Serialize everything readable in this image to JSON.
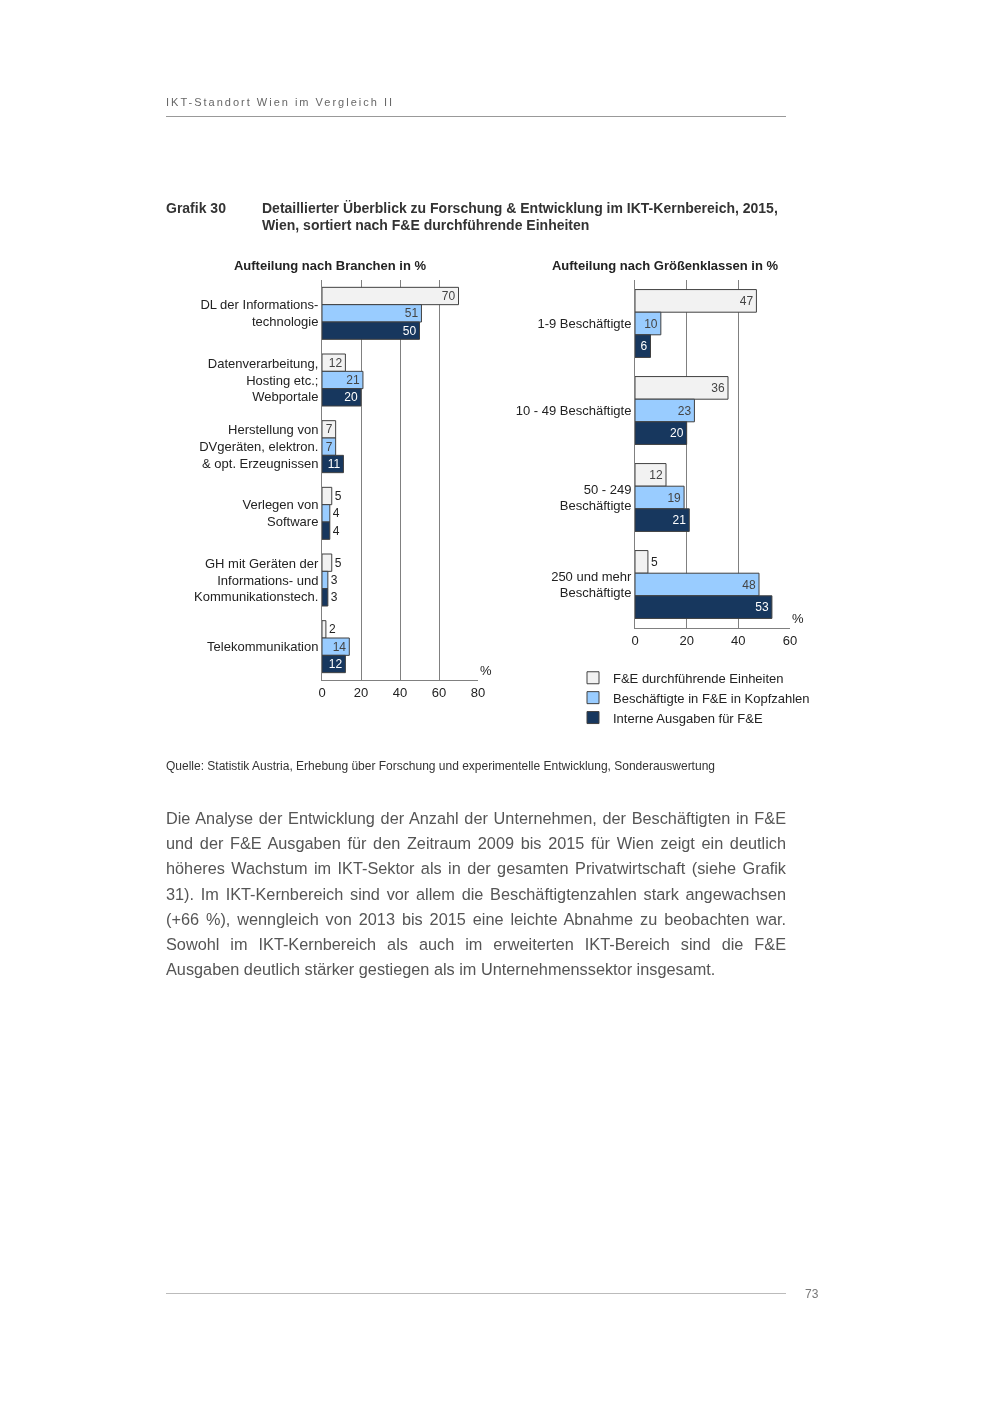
{
  "chart_data": [
    {
      "type": "other",
      "title": "Detaillierter Überblick zu Forschung & Entwicklung im IKT-Kernbereich, 2015, Wien, sortiert nach F&E durchführende Einheiten",
      "annotations": [
        "IKT-Standort Wien im Vergleich II",
        "Grafik 30",
        "Quelle: Statistik Austria, Erhebung über Forschung und experimentelle Entwicklung, Sonderauswertung",
        "Die Analyse der Entwicklung der Anzahl der Unternehmen, der Beschäftigten in F&E und der F&E Ausgaben für den Zeitraum 2009 bis 2015 für Wien zeigt ein deutlich höheres Wachstum im IKT-Sektor als in der gesamten Privatwirtschaft (siehe Grafik 31). Im IKT-Kernbereich sind vor allem die Beschäftigtenzahlen stark angewachsen (+66 %), wenngleich von 2013 bis 2015 eine leichte Abnahme zu beobachten war. Sowohl im IKT-Kernbereich als auch im erweiterten IKT-Bereich sind die F&E Ausgaben deutlich stärker gestiegen als im Unternehmenssektor insgesamt.",
        "73"
      ]
    },
    {
      "type": "bar",
      "orientation": "horizontal",
      "title": "Aufteilung nach Branchen in %",
      "xlabel": "%",
      "categories": [
        "DL der Informations-technologie",
        "Datenverarbeitung, Hosting etc.; Webportale",
        "Herstellung von DVgeräten, elektron. & opt. Erzeugnissen",
        "Verlegen von Software",
        "GH mit Geräten der Informations- und Kommunikationstech.",
        "Telekommunikation"
      ],
      "series": [
        {
          "color": "#f2f2f2",
          "values": [
            70,
            12,
            7,
            5,
            5,
            2
          ]
        },
        {
          "color": "#99ccff",
          "values": [
            51,
            21,
            7,
            4,
            3,
            14
          ]
        },
        {
          "color": "#17375e",
          "values": [
            50,
            20,
            11,
            4,
            3,
            12
          ]
        }
      ],
      "xlim": [
        0,
        80
      ],
      "xticks": [
        0,
        20,
        40,
        60,
        80
      ],
      "grid": "x",
      "data_labels": true
    },
    {
      "type": "bar",
      "orientation": "horizontal",
      "title": "Aufteilung nach Größenklassen in %",
      "xlabel": "%",
      "categories": [
        "1-9 Beschäftigte",
        "10 - 49 Beschäftigte",
        "50 - 249 Beschäftigte",
        "250 und mehr Beschäftigte"
      ],
      "series": [
        {
          "name": "F&E durchführende Einheiten",
          "color": "#f2f2f2",
          "values": [
            47,
            36,
            12,
            5
          ]
        },
        {
          "name": "Beschäftigte in F&E in Kopfzahlen",
          "color": "#99ccff",
          "values": [
            10,
            23,
            19,
            48
          ]
        },
        {
          "name": "Interne Ausgaben für F&E",
          "color": "#17375e",
          "values": [
            6,
            20,
            21,
            53
          ]
        }
      ],
      "xlim": [
        0,
        60
      ],
      "xticks": [
        0,
        20,
        40,
        60
      ],
      "grid": "x",
      "data_labels": true,
      "legend": "bottom"
    }
  ]
}
